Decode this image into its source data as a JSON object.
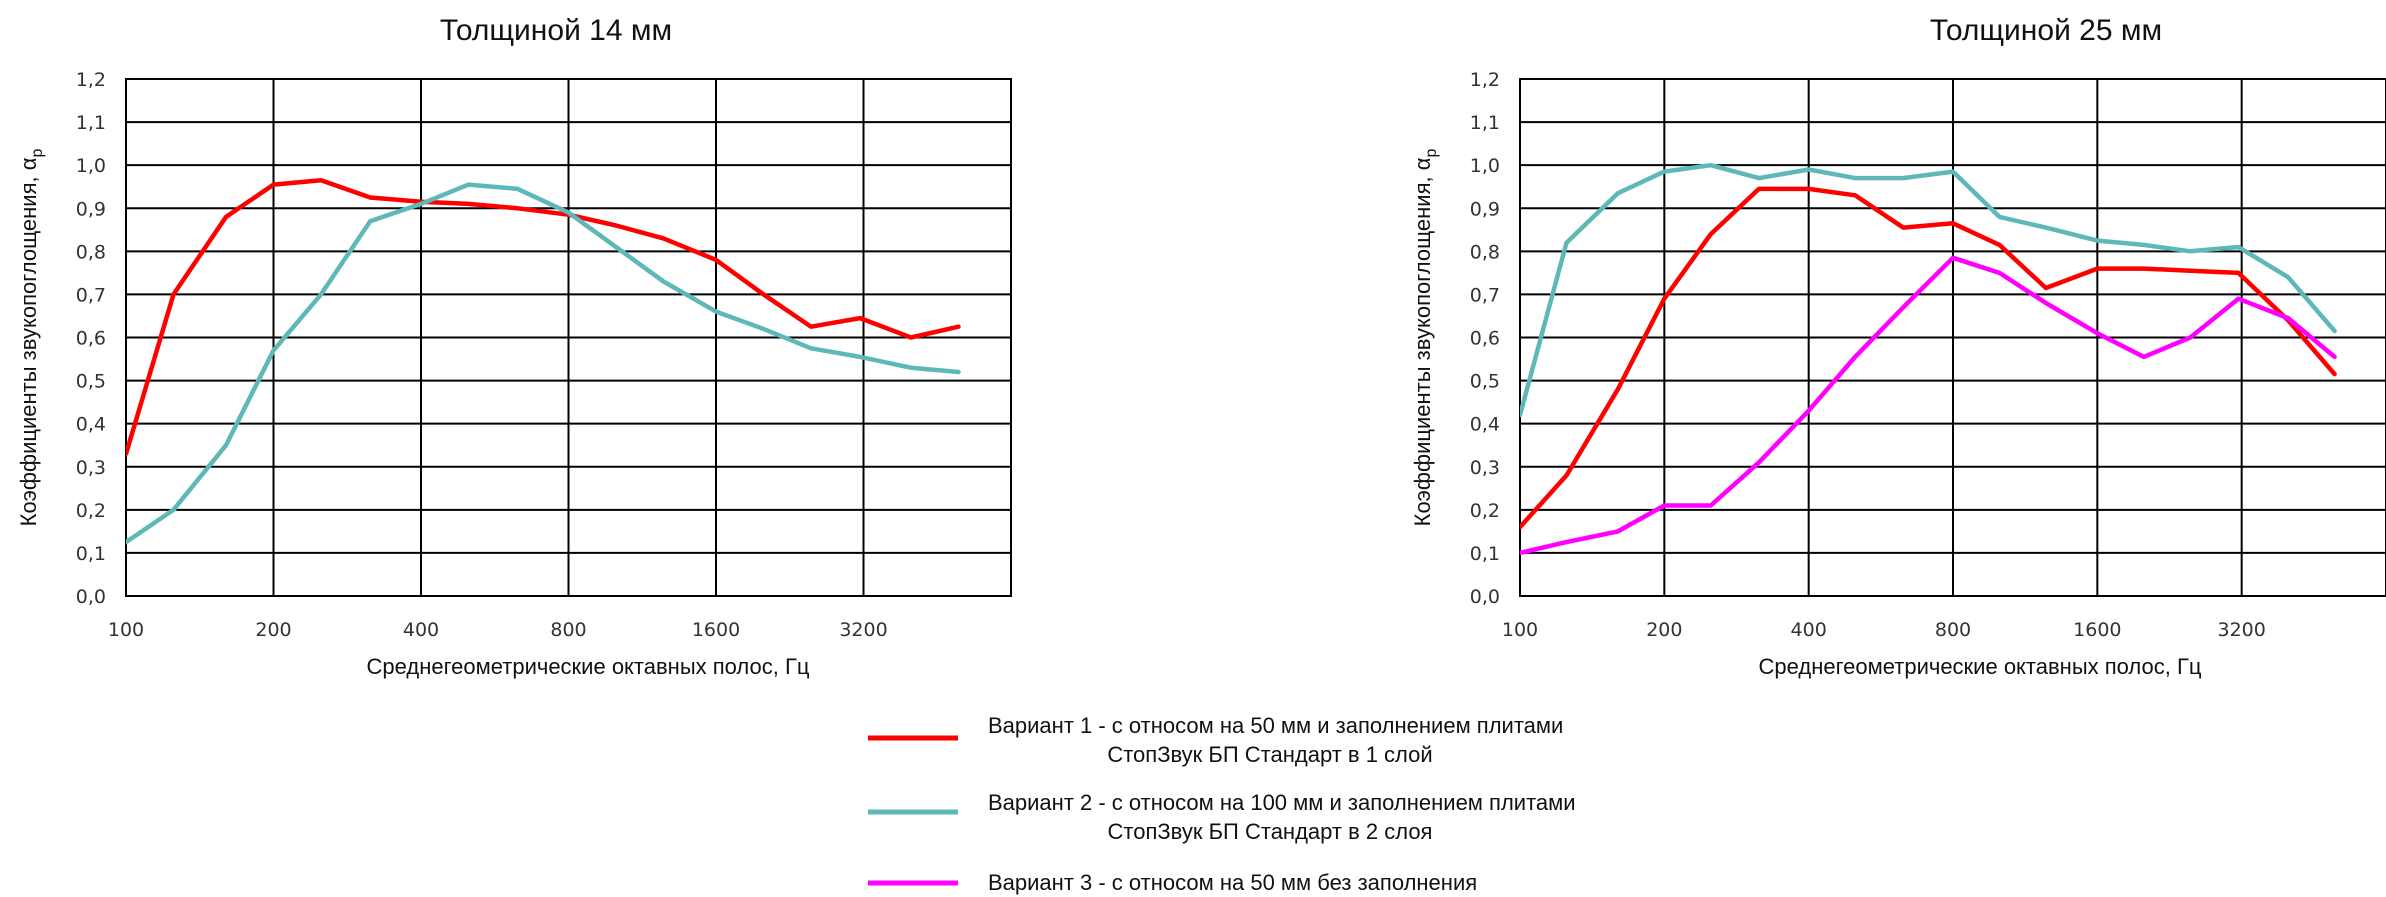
{
  "chart_data": [
    {
      "type": "line",
      "title": "Толщиной 14 мм",
      "xlabel": "Среднегеометрические октавных полос, Гц",
      "ylabel": "Коэффициенты звукопоглощения, α",
      "ylabel_sub": "p",
      "x_scale": "log2",
      "xlim": [
        100,
        6400
      ],
      "ylim": [
        0,
        1.2
      ],
      "x_ticks": [
        "100",
        "200",
        "400",
        "800",
        "1600",
        "3200"
      ],
      "y_ticks": [
        "0,0",
        "0,1",
        "0,2",
        "0,3",
        "0,4",
        "0,5",
        "0,6",
        "0,7",
        "0,8",
        "0,9",
        "1,0",
        "1,1",
        "1,2"
      ],
      "grid": true,
      "x": [
        100,
        125,
        160,
        200,
        250,
        315,
        400,
        500,
        630,
        800,
        1000,
        1250,
        1600,
        2000,
        2500,
        3150,
        4000,
        5000
      ],
      "series": [
        {
          "name": "Вариант 1 - с относом на 50 мм и заполнением плитами СтопЗвук БП Стандарт в 1 слой",
          "color": "#ff0000",
          "values": [
            0.33,
            0.7,
            0.88,
            0.955,
            0.965,
            0.925,
            0.915,
            0.91,
            0.9,
            0.885,
            0.86,
            0.83,
            0.78,
            0.7,
            0.625,
            0.645,
            0.6,
            0.625
          ]
        },
        {
          "name": "Вариант 2 - с относом на 100 мм и заполнением плитами СтопЗвук БП Стандарт в 2 слоя",
          "color": "#5fb8b8",
          "values": [
            0.125,
            0.2,
            0.35,
            0.57,
            0.7,
            0.87,
            0.91,
            0.955,
            0.945,
            0.89,
            0.81,
            0.73,
            0.66,
            0.62,
            0.575,
            0.555,
            0.53,
            0.52
          ]
        }
      ]
    },
    {
      "type": "line",
      "title": "Толщиной 25 мм",
      "xlabel": "Среднегеометрические октавных полос, Гц",
      "ylabel": "Коэффициенты звукопоглощения, α",
      "ylabel_sub": "p",
      "x_scale": "log2",
      "xlim": [
        100,
        6400
      ],
      "ylim": [
        0,
        1.2
      ],
      "x_ticks": [
        "100",
        "200",
        "400",
        "800",
        "1600",
        "3200"
      ],
      "y_ticks": [
        "0,0",
        "0,1",
        "0,2",
        "0,3",
        "0,4",
        "0,5",
        "0,6",
        "0,7",
        "0,8",
        "0,9",
        "1,0",
        "1,1",
        "1,2"
      ],
      "grid": true,
      "x": [
        100,
        125,
        160,
        200,
        250,
        315,
        400,
        500,
        630,
        800,
        1000,
        1250,
        1600,
        2000,
        2500,
        3150,
        4000,
        5000
      ],
      "series": [
        {
          "name": "Вариант 1 - с относом на 50 мм и заполнением плитами СтопЗвук БП Стандарт в 1 слой",
          "color": "#ff0000",
          "values": [
            0.16,
            0.28,
            0.48,
            0.69,
            0.84,
            0.945,
            0.945,
            0.93,
            0.855,
            0.865,
            0.815,
            0.715,
            0.76,
            0.76,
            0.755,
            0.75,
            0.64,
            0.515
          ]
        },
        {
          "name": "Вариант 2 - с относом на 100 мм и заполнением плитами СтопЗвук БП Стандарт в 2 слоя",
          "color": "#5fb8b8",
          "values": [
            0.42,
            0.82,
            0.935,
            0.985,
            1.0,
            0.97,
            0.99,
            0.97,
            0.97,
            0.985,
            0.88,
            0.855,
            0.825,
            0.815,
            0.8,
            0.81,
            0.74,
            0.615
          ]
        },
        {
          "name": "Вариант 3 - с относом на 50 мм без заполнения",
          "color": "#ff00ff",
          "values": [
            0.1,
            0.125,
            0.15,
            0.21,
            0.21,
            0.31,
            0.43,
            0.555,
            0.67,
            0.785,
            0.75,
            0.68,
            0.61,
            0.555,
            0.6,
            0.69,
            0.645,
            0.555
          ]
        }
      ]
    }
  ],
  "legend": [
    {
      "line1": "Вариант 1 - с относом на 50 мм и заполнением плитами",
      "line2": "СтопЗвук БП Стандарт в 1 слой",
      "color": "#ff0000"
    },
    {
      "line1": "Вариант 2 - с относом на 100 мм и заполнением плитами",
      "line2": "СтопЗвук БП Стандарт в 2 слоя",
      "color": "#5fb8b8"
    },
    {
      "line1": "Вариант 3 - с относом на 50 мм без заполнения",
      "line2": "",
      "color": "#ff00ff"
    }
  ]
}
